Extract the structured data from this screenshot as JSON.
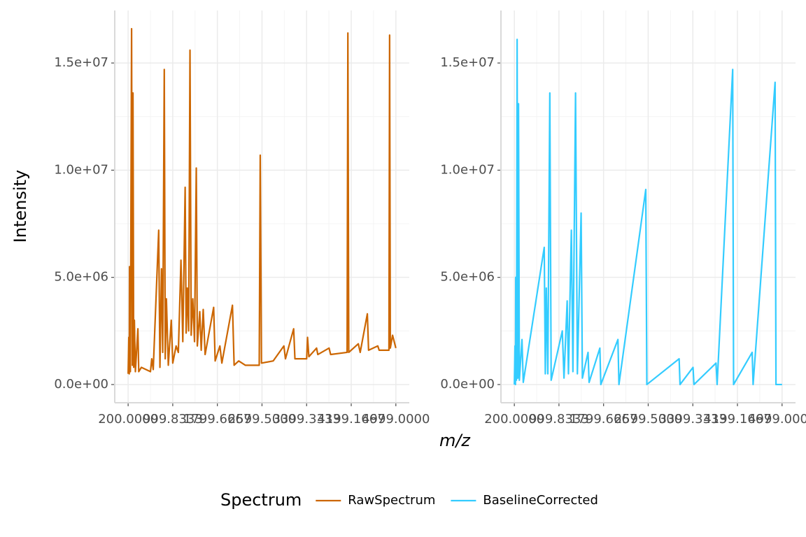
{
  "chart_data": {
    "type": "line",
    "x_label": "m/z",
    "y_label": "Intensity",
    "legend_title": "Spectrum",
    "legend": "bottom",
    "grid": true,
    "xlim": [
      -40,
      5240
    ],
    "xticks": [
      {
        "value": 200,
        "label": "200.0000"
      },
      {
        "value": 999.8333,
        "label": "999.8333"
      },
      {
        "value": 1799.6667,
        "label": "1799.6667"
      },
      {
        "value": 2599.5,
        "label": "2599.5000"
      },
      {
        "value": 3399.3333,
        "label": "3399.3333"
      },
      {
        "value": 4199.1667,
        "label": "4199.1667"
      },
      {
        "value": 4999,
        "label": "4999.0000"
      }
    ],
    "ylim": [
      -850000,
      17450000
    ],
    "yticks": [
      {
        "value": 0,
        "label": "0.0e+00"
      },
      {
        "value": 5000000,
        "label": "5.0e+06"
      },
      {
        "value": 10000000,
        "label": "1.0e+07"
      },
      {
        "value": 15000000,
        "label": "1.5e+07"
      }
    ],
    "series": [
      {
        "name": "RawSpectrum",
        "color": "#cc6600",
        "x": [
          200,
          212,
          220,
          225,
          240,
          262,
          275,
          287,
          300,
          312,
          330,
          375,
          390,
          437,
          600,
          624,
          650,
          748,
          770,
          798,
          820,
          848,
          865,
          886,
          920,
          973,
          1000,
          1060,
          1100,
          1147,
          1180,
          1222,
          1240,
          1260,
          1285,
          1309,
          1330,
          1359,
          1390,
          1422,
          1440,
          1484,
          1510,
          1546,
          1580,
          1733,
          1760,
          1845,
          1880,
          2070,
          2100,
          2182,
          2300,
          2550,
          2568,
          2590,
          2800,
          2992,
          3020,
          3167,
          3190,
          3400,
          3416,
          3440,
          3578,
          3600,
          3802,
          3830,
          4125,
          4139,
          4155,
          4326,
          4360,
          4488,
          4510,
          4675,
          4700,
          4875,
          4887,
          4900,
          4940,
          4999
        ],
        "values": [
          500000,
          2200000,
          500000,
          5500000,
          600000,
          16600000,
          900000,
          13600000,
          800000,
          3000000,
          600000,
          2600000,
          600000,
          800000,
          600000,
          1200000,
          700000,
          7200000,
          800000,
          5400000,
          1500000,
          14700000,
          1200000,
          4000000,
          900000,
          3000000,
          1000000,
          1800000,
          1500000,
          5800000,
          2000000,
          9200000,
          2400000,
          4500000,
          2500000,
          15600000,
          2300000,
          4000000,
          2000000,
          10100000,
          1800000,
          3400000,
          1600000,
          3500000,
          1400000,
          3600000,
          1100000,
          1800000,
          1000000,
          3700000,
          900000,
          1100000,
          900000,
          900000,
          10700000,
          1000000,
          1100000,
          1800000,
          1200000,
          2600000,
          1200000,
          1200000,
          2200000,
          1300000,
          1700000,
          1400000,
          1700000,
          1400000,
          1500000,
          16400000,
          1500000,
          1900000,
          1500000,
          3300000,
          1600000,
          1800000,
          1600000,
          1600000,
          16300000,
          1700000,
          2300000,
          1700000
        ]
      },
      {
        "name": "BaselineCorrected",
        "color": "#33ccff",
        "x": [
          200,
          212,
          220,
          225,
          238,
          250,
          262,
          275,
          290,
          337,
          360,
          736,
          755,
          773,
          800,
          836,
          860,
          1060,
          1090,
          1147,
          1170,
          1222,
          1250,
          1297,
          1330,
          1397,
          1420,
          1521,
          1540,
          1733,
          1750,
          2057,
          2075,
          2556,
          2575,
          3154,
          3170,
          3403,
          3420,
          3815,
          3835,
          4114,
          4130,
          4463,
          4480,
          4874,
          4890,
          4999
        ],
        "values": [
          0,
          1800000,
          0,
          5000000,
          200000,
          16100000,
          300000,
          13100000,
          200000,
          2100000,
          100000,
          6400000,
          500000,
          4500000,
          500000,
          13600000,
          200000,
          2500000,
          300000,
          3900000,
          500000,
          7200000,
          600000,
          13600000,
          500000,
          8000000,
          300000,
          1500000,
          100000,
          1700000,
          0,
          2100000,
          0,
          9100000,
          0,
          1200000,
          0,
          800000,
          0,
          1000000,
          0,
          14700000,
          0,
          1500000,
          0,
          14100000,
          0,
          0
        ]
      }
    ]
  }
}
